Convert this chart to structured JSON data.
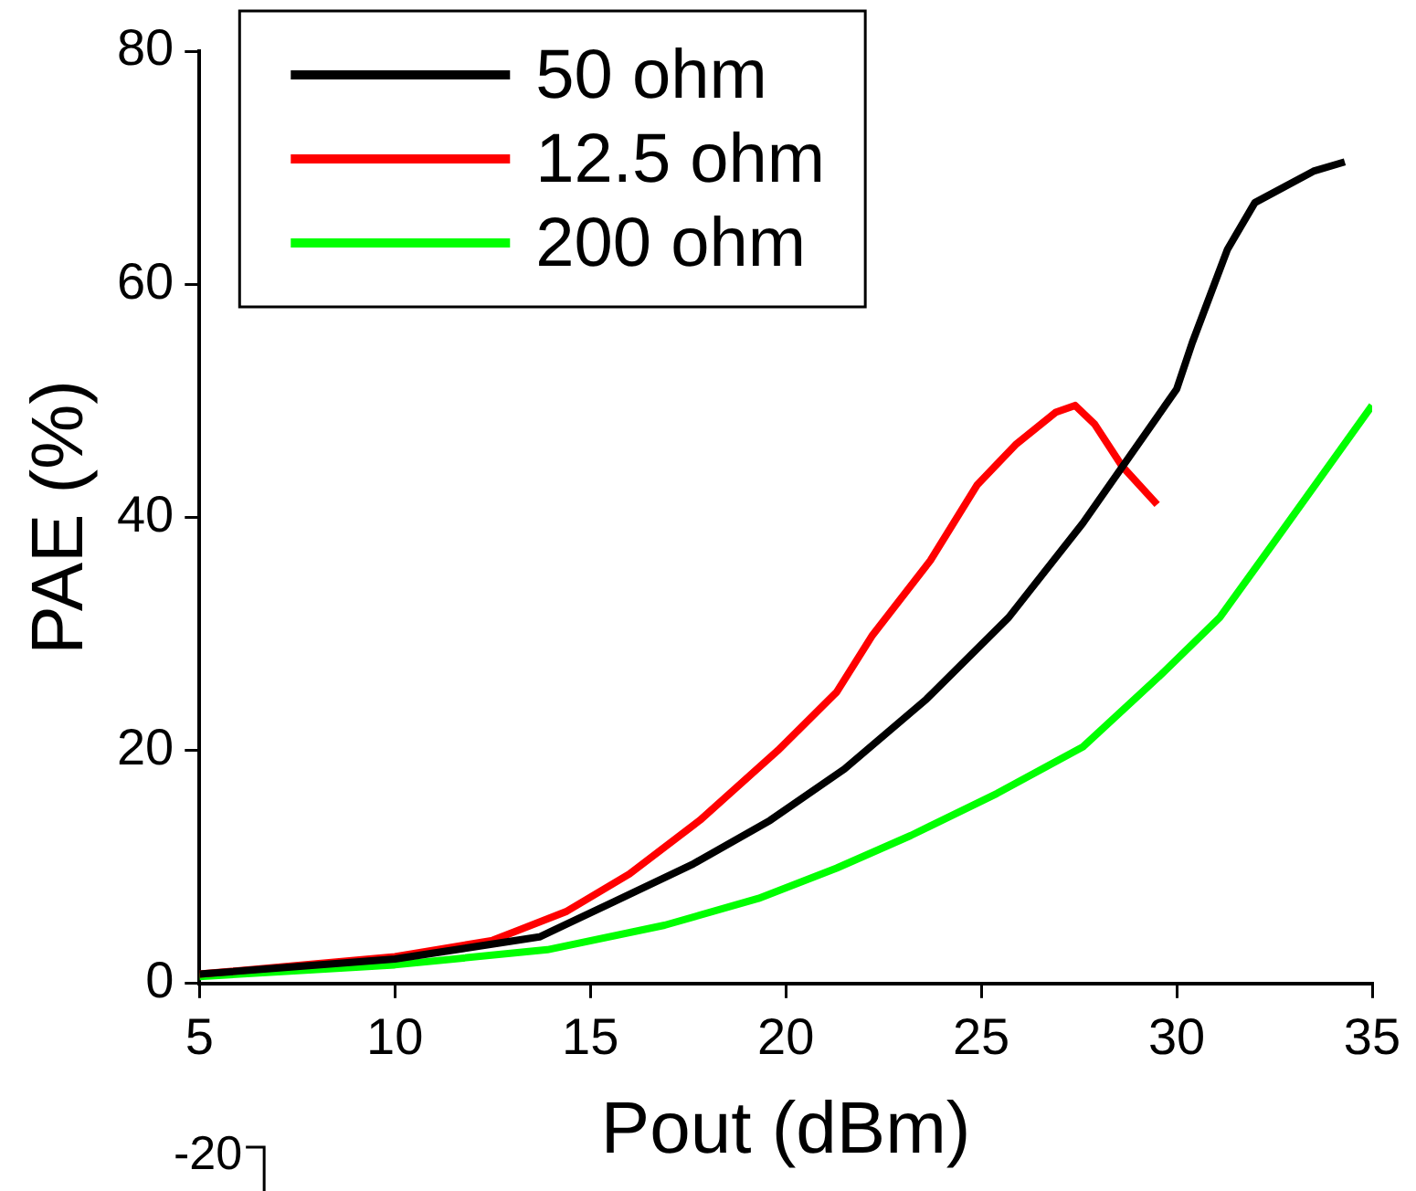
{
  "chart_data": {
    "type": "line",
    "xlabel": "Pout (dBm)",
    "ylabel": "PAE (%)",
    "xlim": [
      5,
      35
    ],
    "ylim": [
      0,
      80
    ],
    "xticks": [
      5,
      10,
      15,
      20,
      25,
      30,
      35
    ],
    "yticks": [
      0,
      20,
      40,
      60,
      80
    ],
    "legend": "top left",
    "grid": false,
    "marker": "none",
    "line_style": "solid",
    "annotations": [
      "-20"
    ],
    "series": [
      {
        "name": "50 ohm",
        "color": "#000000",
        "x": [
          5,
          10,
          13.7,
          15.6,
          17.6,
          19.6,
          21.5,
          23.6,
          25.7,
          27.6,
          30,
          30.4,
          31.3,
          32,
          33.5,
          34.3
        ],
        "values": [
          0.8,
          2.1,
          4,
          7,
          10.2,
          14,
          18.4,
          24.4,
          31.4,
          39.5,
          51,
          55,
          63,
          67,
          69.7,
          70.5
        ]
      },
      {
        "name": "12.5 ohm",
        "color": "#ff0000",
        "x": [
          5,
          10,
          12.5,
          14.4,
          16,
          17.8,
          19.8,
          21.3,
          22.2,
          23.7,
          24.9,
          25.9,
          26.9,
          27.4,
          27.9,
          28.6,
          29.5
        ],
        "values": [
          0.8,
          2.3,
          3.7,
          6.2,
          9.4,
          14,
          20,
          25,
          29.8,
          36.3,
          42.8,
          46.3,
          49,
          49.6,
          48,
          44.4,
          41.1
        ]
      },
      {
        "name": "200 ohm",
        "color": "#00ff00",
        "x": [
          5,
          10,
          13.9,
          16.9,
          19.3,
          21.3,
          23.2,
          25.4,
          27.6,
          29.6,
          31.1,
          32.5,
          35
        ],
        "values": [
          0.6,
          1.6,
          2.9,
          5,
          7.3,
          9.9,
          12.7,
          16.3,
          20.3,
          26.5,
          31.4,
          37.9,
          49.6
        ]
      }
    ]
  }
}
